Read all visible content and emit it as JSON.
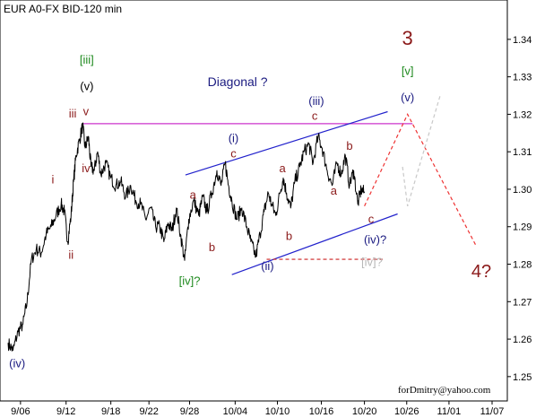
{
  "chart_data": {
    "type": "line",
    "title": "EUR A0-FX BID-120 min",
    "credit": "forDmitry@yahoo.com",
    "xlabel": "",
    "ylabel": "",
    "ylim": [
      1.2435,
      1.3505
    ],
    "xlim": [
      0,
      58.4
    ],
    "grid": false,
    "x_ticks": [
      {
        "label": "9/06",
        "x": 1.5
      },
      {
        "label": "9/12",
        "x": 7.0
      },
      {
        "label": "9/18",
        "x": 12.4
      },
      {
        "label": "9/22",
        "x": 17.0
      },
      {
        "label": "9/28",
        "x": 21.9
      },
      {
        "label": "10/04",
        "x": 27.4
      },
      {
        "label": "10/10",
        "x": 32.5
      },
      {
        "label": "10/16",
        "x": 37.8
      },
      {
        "label": "10/20",
        "x": 43.0
      },
      {
        "label": "10/26",
        "x": 48.1
      },
      {
        "label": "11/01",
        "x": 53.2
      },
      {
        "label": "11/07",
        "x": 58.4
      }
    ],
    "y_ticks": [
      1.25,
      1.26,
      1.27,
      1.28,
      1.29,
      1.3,
      1.31,
      1.32,
      1.33,
      1.34
    ],
    "price_series": {
      "name": "",
      "points": [
        [
          0,
          1.259
        ],
        [
          0.6,
          1.257
        ],
        [
          1.2,
          1.262
        ],
        [
          1.8,
          1.264
        ],
        [
          2.3,
          1.27
        ],
        [
          2.8,
          1.281
        ],
        [
          3.4,
          1.284
        ],
        [
          4.0,
          1.283
        ],
        [
          4.6,
          1.288
        ],
        [
          5.2,
          1.29
        ],
        [
          5.8,
          1.293
        ],
        [
          6.4,
          1.296
        ],
        [
          6.8,
          1.294
        ],
        [
          7.2,
          1.286
        ],
        [
          7.6,
          1.293
        ],
        [
          7.9,
          1.302
        ],
        [
          8.2,
          1.309
        ],
        [
          8.6,
          1.313
        ],
        [
          9.0,
          1.317
        ],
        [
          9.3,
          1.311
        ],
        [
          9.7,
          1.314
        ],
        [
          10.0,
          1.306
        ],
        [
          10.4,
          1.305
        ],
        [
          10.8,
          1.31
        ],
        [
          11.2,
          1.304
        ],
        [
          11.8,
          1.307
        ],
        [
          12.4,
          1.303
        ],
        [
          13.0,
          1.301
        ],
        [
          13.6,
          1.302
        ],
        [
          14.2,
          1.298
        ],
        [
          14.8,
          1.301
        ],
        [
          15.4,
          1.297
        ],
        [
          16.0,
          1.296
        ],
        [
          16.6,
          1.292
        ],
        [
          17.2,
          1.295
        ],
        [
          17.8,
          1.29
        ],
        [
          18.3,
          1.29
        ],
        [
          18.8,
          1.286
        ],
        [
          19.3,
          1.291
        ],
        [
          19.8,
          1.289
        ],
        [
          20.3,
          1.295
        ],
        [
          20.8,
          1.288
        ],
        [
          21.3,
          1.281
        ],
        [
          21.8,
          1.292
        ],
        [
          22.4,
          1.297
        ],
        [
          23.0,
          1.293
        ],
        [
          23.5,
          1.298
        ],
        [
          24.0,
          1.294
        ],
        [
          24.6,
          1.299
        ],
        [
          25.2,
          1.305
        ],
        [
          25.7,
          1.301
        ],
        [
          26.2,
          1.307
        ],
        [
          26.6,
          1.301
        ],
        [
          27.0,
          1.297
        ],
        [
          27.6,
          1.292
        ],
        [
          28.2,
          1.295
        ],
        [
          28.8,
          1.29
        ],
        [
          29.3,
          1.286
        ],
        [
          29.9,
          1.282
        ],
        [
          30.4,
          1.288
        ],
        [
          30.9,
          1.294
        ],
        [
          31.4,
          1.299
        ],
        [
          31.8,
          1.296
        ],
        [
          32.3,
          1.293
        ],
        [
          32.8,
          1.299
        ],
        [
          33.2,
          1.303
        ],
        [
          33.6,
          1.299
        ],
        [
          34.1,
          1.295
        ],
        [
          34.6,
          1.302
        ],
        [
          35.2,
          1.306
        ],
        [
          35.7,
          1.31
        ],
        [
          36.3,
          1.312
        ],
        [
          36.8,
          1.307
        ],
        [
          37.4,
          1.314
        ],
        [
          37.9,
          1.311
        ],
        [
          38.5,
          1.305
        ],
        [
          39.1,
          1.301
        ],
        [
          39.7,
          1.307
        ],
        [
          40.2,
          1.304
        ],
        [
          40.7,
          1.309
        ],
        [
          41.2,
          1.301
        ],
        [
          41.7,
          1.305
        ],
        [
          42.2,
          1.296
        ],
        [
          42.6,
          1.3
        ],
        [
          43.0,
          1.299
        ]
      ]
    },
    "annotations": [
      {
        "text": "(iv)",
        "x": 1.1,
        "y": 1.2525,
        "color": "#1a1a80",
        "size": 13
      },
      {
        "text": "i",
        "x": 5.4,
        "y": 1.3015,
        "color": "#8b1a1a",
        "size": 13
      },
      {
        "text": "ii",
        "x": 7.6,
        "y": 1.2815,
        "color": "#8b1a1a",
        "size": 13
      },
      {
        "text": "[iii]",
        "x": 9.5,
        "y": 1.3335,
        "color": "#1f8a1f",
        "size": 13
      },
      {
        "text": "(v)",
        "x": 9.5,
        "y": 1.3265,
        "color": "#000000",
        "size": 13
      },
      {
        "text": "iii",
        "x": 7.8,
        "y": 1.3192,
        "color": "#8b1a1a",
        "size": 13
      },
      {
        "text": "v",
        "x": 9.4,
        "y": 1.3198,
        "color": "#8b1a1a",
        "size": 13
      },
      {
        "text": "iv",
        "x": 9.4,
        "y": 1.3045,
        "color": "#8b1a1a",
        "size": 13
      },
      {
        "text": "a",
        "x": 22.3,
        "y": 1.2975,
        "color": "#8b1a1a",
        "size": 13
      },
      {
        "text": "b",
        "x": 24.6,
        "y": 1.2835,
        "color": "#8b1a1a",
        "size": 13
      },
      {
        "text": "[iv]?",
        "x": 21.9,
        "y": 1.2745,
        "color": "#1f8a1f",
        "size": 13
      },
      {
        "text": "(i)",
        "x": 27.2,
        "y": 1.3125,
        "color": "#1a1a80",
        "size": 13
      },
      {
        "text": "c",
        "x": 27.2,
        "y": 1.3085,
        "color": "#8b1a1a",
        "size": 13
      },
      {
        "text": "Diagonal ?",
        "x": 27.7,
        "y": 1.3275,
        "color": "#1a1a80",
        "size": 14
      },
      {
        "text": "a",
        "x": 33.1,
        "y": 1.3045,
        "color": "#8b1a1a",
        "size": 13
      },
      {
        "text": "b",
        "x": 33.9,
        "y": 1.2865,
        "color": "#8b1a1a",
        "size": 13
      },
      {
        "text": "(ii)",
        "x": 31.3,
        "y": 1.2785,
        "color": "#1a1a80",
        "size": 13
      },
      {
        "text": "(iii)",
        "x": 37.2,
        "y": 1.3225,
        "color": "#1a1a80",
        "size": 13
      },
      {
        "text": "c",
        "x": 37.0,
        "y": 1.3185,
        "color": "#8b1a1a",
        "size": 13
      },
      {
        "text": "b",
        "x": 41.2,
        "y": 1.3105,
        "color": "#8b1a1a",
        "size": 13
      },
      {
        "text": "a",
        "x": 39.3,
        "y": 1.2985,
        "color": "#8b1a1a",
        "size": 13
      },
      {
        "text": "c",
        "x": 43.8,
        "y": 1.291,
        "color": "#8b1a1a",
        "size": 13
      },
      {
        "text": "(iv)?",
        "x": 44.3,
        "y": 1.2855,
        "color": "#1a1a80",
        "size": 13
      },
      {
        "text": "[iv]?",
        "x": 43.9,
        "y": 1.2795,
        "color": "#b8b8b8",
        "size": 13
      },
      {
        "text": "3",
        "x": 48.2,
        "y": 1.3385,
        "color": "#8b1a1a",
        "size": 22
      },
      {
        "text": "[v]",
        "x": 48.2,
        "y": 1.3305,
        "color": "#1f8a1f",
        "size": 13
      },
      {
        "text": "(v)",
        "x": 48.2,
        "y": 1.3235,
        "color": "#1a1a80",
        "size": 13
      },
      {
        "text": "4?",
        "x": 57.1,
        "y": 1.2765,
        "color": "#8b1a1a",
        "size": 20
      }
    ],
    "lines": [
      {
        "style": "solid",
        "color": "#cc33cc",
        "width": 1.3,
        "points": [
          [
            9.0,
            1.3175
          ],
          [
            48.8,
            1.3175
          ]
        ]
      },
      {
        "style": "solid",
        "color": "#2222cc",
        "width": 1.2,
        "points": [
          [
            21.4,
            1.3038
          ],
          [
            45.8,
            1.3207
          ]
        ]
      },
      {
        "style": "solid",
        "color": "#2222cc",
        "width": 1.2,
        "points": [
          [
            27.0,
            1.2772
          ],
          [
            47.0,
            1.2934
          ]
        ]
      },
      {
        "style": "dashed",
        "color": "#cc2222",
        "width": 1.1,
        "points": [
          [
            31.2,
            1.2813
          ],
          [
            45.2,
            1.2813
          ]
        ]
      },
      {
        "style": "dashed",
        "color": "#ee3333",
        "width": 1.2,
        "points": [
          [
            43.0,
            1.2955
          ],
          [
            48.2,
            1.32
          ],
          [
            56.4,
            1.2852
          ]
        ]
      },
      {
        "style": "dashed",
        "color": "#c8c8c8",
        "width": 1.2,
        "points": [
          [
            47.6,
            1.306
          ],
          [
            48.2,
            1.2955
          ],
          [
            52.2,
            1.3255
          ]
        ]
      }
    ]
  }
}
